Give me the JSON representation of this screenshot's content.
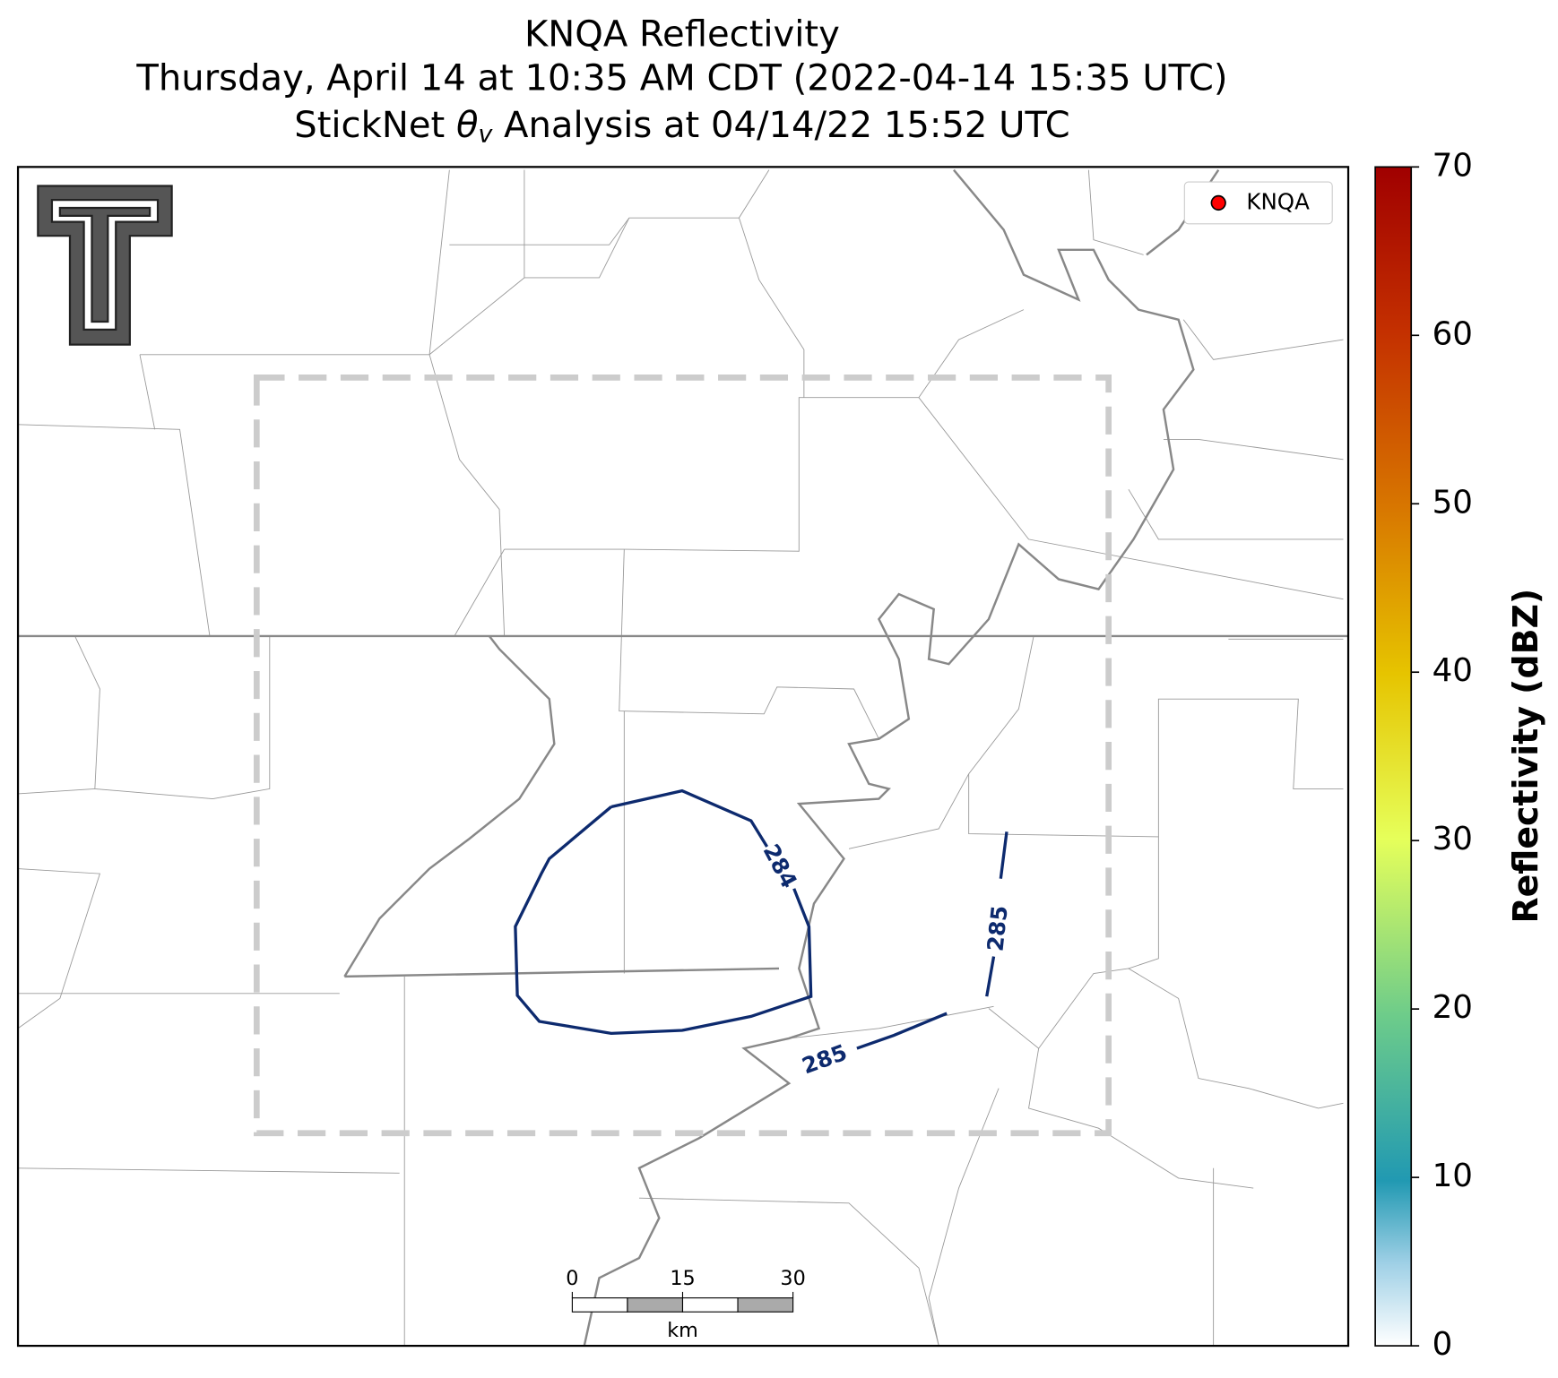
{
  "title": [
    "KNQA Reflectivity",
    "Thursday, April 14 at 10:35 AM CDT (2022-04-14 15:35 UTC)"
  ],
  "subtitle_parts": [
    "StickNet ",
    "θ",
    "v",
    " Analysis at 04/14/22 15:52 UTC"
  ],
  "legend": {
    "label": "KNQA",
    "marker_color": "#ff0000"
  },
  "contours": {
    "color": "#0d2a6e",
    "labels": [
      284,
      285,
      285
    ]
  },
  "scale_bar": {
    "ticks": [
      0,
      15,
      30
    ],
    "unit": "km"
  },
  "colorbar": {
    "label": "Reflectivity (dBZ)",
    "lim": [
      0,
      70
    ],
    "ticks": [
      0,
      10,
      20,
      30,
      40,
      50,
      60,
      70
    ]
  }
}
